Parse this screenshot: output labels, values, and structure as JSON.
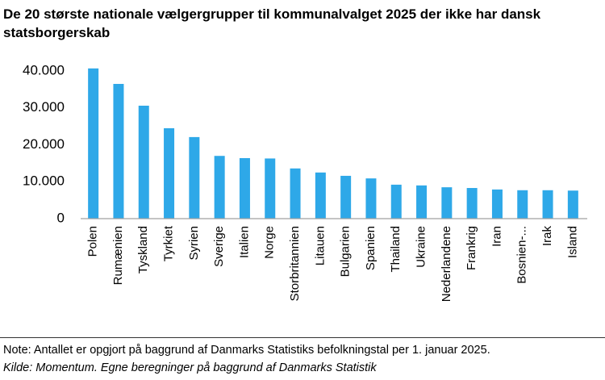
{
  "chart_data": {
    "type": "bar",
    "title": "De 20 største nationale vælgergrupper til kommunalvalget 2025 der ikke har dansk statsborgerskab",
    "categories": [
      "Polen",
      "Rumænien",
      "Tyskland",
      "Tyrkiet",
      "Syrien",
      "Sverige",
      "Italien",
      "Norge",
      "Storbritannien",
      "Litauen",
      "Bulgarien",
      "Spanien",
      "Thailand",
      "Ukraine",
      "Nederlandene",
      "Frankrig",
      "Iran",
      "Bosnien-...",
      "Irak",
      "Island"
    ],
    "values": [
      40700,
      36500,
      30600,
      24500,
      22100,
      17000,
      16400,
      16300,
      13600,
      12500,
      11600,
      10900,
      9200,
      9000,
      8500,
      8300,
      7900,
      7700,
      7700,
      7600
    ],
    "color": "#2ea8e8",
    "ylim": [
      0,
      40000
    ],
    "yticks": [
      0,
      {
        "value": 10000,
        "label": "10.000"
      },
      {
        "value": 20000,
        "label": "20.000"
      },
      {
        "value": 30000,
        "label": "30.000"
      },
      {
        "value": 40000,
        "label": "40.000"
      }
    ],
    "grid": false,
    "note": "Note: Antallet er opgjort på baggrund af Danmarks Statistiks befolkningstal per 1. januar 2025.",
    "source": "Kilde: Momentum. Egne beregninger på baggrund af Danmarks Statistik"
  }
}
